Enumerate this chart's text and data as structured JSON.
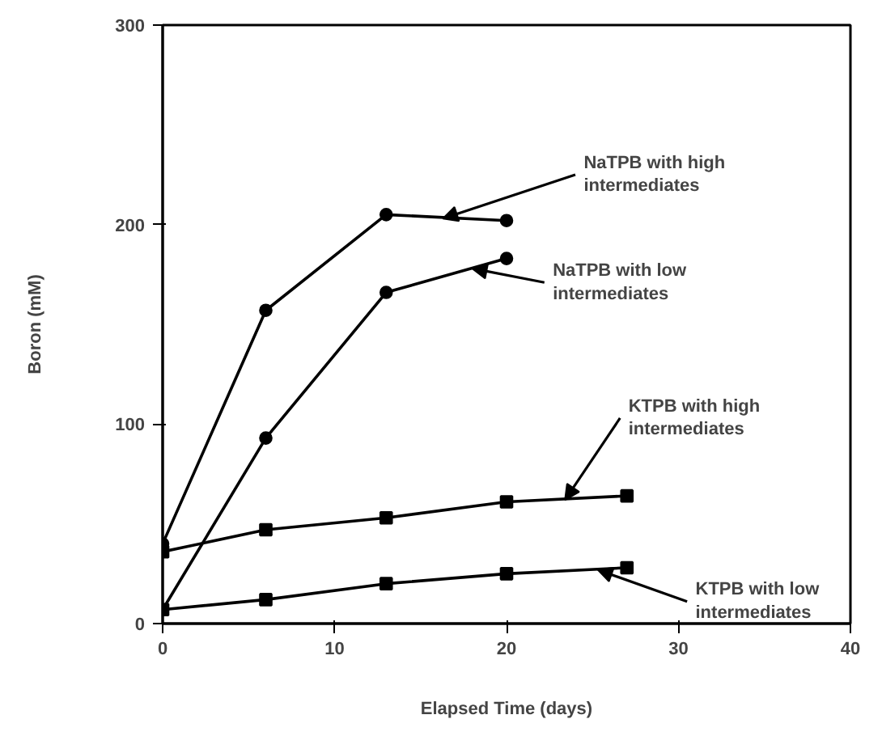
{
  "chart_data": {
    "type": "line",
    "xlabel": "Elapsed Time (days)",
    "ylabel": "Boron (mM)",
    "xlim": [
      0,
      40
    ],
    "ylim": [
      0,
      300
    ],
    "xticks": [
      0,
      10,
      20,
      30,
      40
    ],
    "yticks": [
      0,
      100,
      200,
      300
    ],
    "grid": false,
    "line_style": "solid",
    "series": [
      {
        "color": "#000000",
        "marker": "circle",
        "x": [
          0,
          6,
          13,
          20
        ],
        "values": [
          40,
          157,
          205,
          202
        ]
      },
      {
        "color": "#000000",
        "marker": "circle",
        "x": [
          0,
          6,
          13,
          20
        ],
        "values": [
          7,
          93,
          166,
          183
        ]
      },
      {
        "color": "#000000",
        "marker": "square",
        "x": [
          0,
          6,
          13,
          20,
          27
        ],
        "values": [
          36,
          47,
          53,
          61,
          64
        ]
      },
      {
        "color": "#000000",
        "marker": "square",
        "x": [
          0,
          6,
          13,
          20,
          27
        ],
        "values": [
          7,
          12,
          20,
          25,
          28
        ]
      }
    ],
    "annotations": [
      {
        "text": "NaTPB with high\nintermediates",
        "x": 16.3,
        "y": 203
      },
      {
        "text": "NaTPB with low\nintermediates",
        "x": 18,
        "y": 178
      },
      {
        "text": "KTPB with high\nintermediates",
        "x": 23.4,
        "y": 62
      },
      {
        "text": "KTPB with low\nintermediates",
        "x": 25.3,
        "y": 27
      }
    ]
  }
}
